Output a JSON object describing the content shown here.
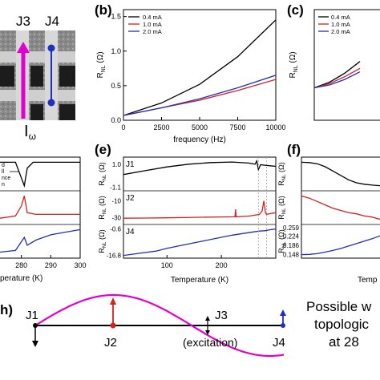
{
  "figure": {
    "panel_labels": {
      "b": "(b)",
      "c": "(c)",
      "e": "(e)",
      "f": "(f)",
      "h": "h)"
    },
    "device": {
      "j3": "J3",
      "j4": "J4",
      "i_omega": "I",
      "omega_sub": "ω"
    },
    "caption_lines": [
      "Possible w",
      "topologic",
      "at 28"
    ],
    "junctions": {
      "j1": "J1",
      "j2": "J2",
      "j3": "J3",
      "j4": "J4",
      "excitation": "(excitation)"
    },
    "freq_ylabel_main": "R",
    "freq_ylabel_sub": "NL",
    "freq_ylabel_unit": " (Ω)",
    "temp_ylabel_main": "R",
    "temp_ylabel_sub": "NL",
    "temp_ylabel_unit": " (Ω)",
    "partial_left_tlabel": "perature (K)",
    "partial_right_tlabel": "Temp",
    "partial_left_annotations": [
      "d",
      "ll",
      "nce",
      "n"
    ],
    "colors": {
      "black": "#000000",
      "red": "#d62020",
      "blue": "#1f2fbf",
      "magenta": "#e000d0"
    }
  },
  "chart_data": [
    {
      "id": "b",
      "type": "line",
      "xlabel": "frequency (Hz)",
      "ylabel": "R_NL (Ω)",
      "xlim": [
        0,
        10000
      ],
      "ylim": [
        0,
        1.6
      ],
      "xticks": [
        0,
        2500,
        5000,
        7500,
        10000
      ],
      "xtick_labels": [
        "0",
        "2500",
        "5000",
        "7500",
        "10000"
      ],
      "yticks": [
        0.0,
        0.5,
        1.0,
        1.5
      ],
      "ytick_labels": [
        "0.0",
        "0.5",
        "1.0",
        "1.5"
      ],
      "legend": "top-left",
      "series": [
        {
          "name": "0.4 mA",
          "color": "#000000",
          "x": [
            0,
            2500,
            5000,
            7500,
            10000
          ],
          "y": [
            0.07,
            0.25,
            0.52,
            0.92,
            1.45
          ]
        },
        {
          "name": "1.0 mA",
          "color": "#d62020",
          "x": [
            0,
            2500,
            5000,
            7500,
            10000
          ],
          "y": [
            0.07,
            0.18,
            0.29,
            0.43,
            0.59
          ]
        },
        {
          "name": "2.0 mA",
          "color": "#1f2fbf",
          "x": [
            0,
            2500,
            5000,
            7500,
            10000
          ],
          "y": [
            0.07,
            0.18,
            0.31,
            0.47,
            0.65
          ]
        }
      ]
    },
    {
      "id": "c",
      "type": "line",
      "partial": true,
      "ylabel": "R_NL (Ω)",
      "xlim": [
        0,
        10000
      ],
      "ylim": [
        0,
        1.6
      ],
      "legend": "top-left",
      "series": [
        {
          "name": "0.4 mA",
          "color": "#000000",
          "x": [
            0,
            1000,
            2000,
            3000
          ],
          "y": [
            0.47,
            0.55,
            0.68,
            0.85
          ]
        },
        {
          "name": "1.0 mA",
          "color": "#d62020",
          "x": [
            0,
            1000,
            2000,
            3000
          ],
          "y": [
            0.47,
            0.53,
            0.63,
            0.75
          ]
        },
        {
          "name": "2.0 mA",
          "color": "#1f2fbf",
          "x": [
            0,
            1000,
            2000,
            3000
          ],
          "y": [
            0.47,
            0.51,
            0.59,
            0.7
          ]
        }
      ]
    },
    {
      "id": "e",
      "type": "line",
      "xlabel": "Temperature (K)",
      "ylabel": "R_NL (Ω)",
      "xlim": [
        20,
        300
      ],
      "xticks": [
        100,
        200
      ],
      "xtick_labels": [
        "100",
        "200"
      ],
      "markers": [
        268,
        283
      ],
      "subplots": [
        {
          "label": "J1",
          "color": "#000000",
          "ylim": [
            -1.3,
            1.5
          ],
          "yticks": [
            1.0,
            -1.1
          ],
          "ytick_labels": [
            "1.0",
            "-1.1"
          ],
          "x": [
            20,
            60,
            100,
            140,
            180,
            220,
            250,
            262,
            265,
            268,
            272,
            280,
            290,
            300
          ],
          "y": [
            0.05,
            0.4,
            0.75,
            1.0,
            1.15,
            1.2,
            1.1,
            1.0,
            1.3,
            0.5,
            0.95,
            0.9,
            0.85,
            0.8
          ]
        },
        {
          "label": "J2",
          "color": "#d62020",
          "ylim": [
            -36,
            0
          ],
          "yticks": [
            -10,
            -30
          ],
          "ytick_labels": [
            "-10",
            "-30"
          ],
          "x": [
            20,
            60,
            100,
            150,
            200,
            225,
            226,
            227,
            250,
            270,
            275,
            278,
            281,
            283,
            290,
            300
          ],
          "y": [
            -30.5,
            -30.3,
            -30,
            -29.5,
            -29,
            -28.8,
            -20,
            -28.8,
            -28,
            -26,
            -22,
            -10,
            -24,
            -26,
            -25,
            -24
          ]
        },
        {
          "label": "J4",
          "color": "#1f2fbf",
          "ylim": [
            -17.5,
            1
          ],
          "yticks": [
            -0.6,
            -16.8
          ],
          "ytick_labels": [
            "-0.6",
            "-16.8"
          ],
          "x": [
            20,
            50,
            80,
            100,
            130,
            160,
            190,
            220,
            250,
            270,
            280,
            290,
            300
          ],
          "y": [
            -16.8,
            -15.5,
            -14.2,
            -12.5,
            -10.5,
            -8.5,
            -6.5,
            -4.5,
            -3,
            -2,
            -1.8,
            -1.2,
            -0.8
          ]
        }
      ]
    },
    {
      "id": "f",
      "type": "line",
      "partial": true,
      "xlabel": "Temp",
      "ylabel": "R_NL (Ω)",
      "subplots": [
        {
          "color": "#000000",
          "yticks": [],
          "ytick_labels": [],
          "x": [
            0,
            10,
            20,
            30,
            40,
            50,
            60,
            70,
            80,
            90,
            100
          ],
          "y": [
            1.25,
            1.24,
            1.2,
            1.1,
            0.95,
            0.8,
            0.65,
            0.55,
            0.5,
            0.47,
            0.45
          ]
        },
        {
          "color": "#d62020",
          "yticks": [],
          "ytick_labels": [],
          "x": [
            0,
            10,
            20,
            30,
            40,
            50,
            60,
            70,
            80,
            90,
            100
          ],
          "y": [
            3.1,
            2.9,
            2.6,
            2.3,
            2.0,
            1.8,
            1.6,
            1.5,
            1.3,
            1.2,
            1.0
          ]
        },
        {
          "color": "#1f2fbf",
          "ylim": [
            0.14,
            0.265
          ],
          "yticks": [
            0.259,
            0.224,
            0.186,
            0.148
          ],
          "ytick_labels": [
            "0.259",
            "0.224",
            "0.186",
            "0.148"
          ],
          "x": [
            0,
            10,
            20,
            30,
            40,
            50,
            60,
            70,
            80,
            90,
            100
          ],
          "y": [
            0.148,
            0.149,
            0.152,
            0.158,
            0.165,
            0.173,
            0.183,
            0.193,
            0.203,
            0.213,
            0.225
          ]
        }
      ]
    },
    {
      "id": "d_partial",
      "type": "line",
      "partial": true,
      "xlabel": "perature (K)",
      "xlim": [
        270,
        300
      ],
      "xticks": [
        280,
        290,
        300
      ],
      "xtick_labels": [
        "280",
        "290",
        "300"
      ],
      "subplots": [
        {
          "color": "#000000",
          "x": [
            270,
            278,
            281,
            282,
            284,
            290,
            300
          ],
          "y": [
            0.8,
            0.8,
            0.2,
            0.65,
            0.8,
            0.8,
            0.8
          ]
        },
        {
          "color": "#d62020",
          "x": [
            270,
            278,
            280,
            281,
            282,
            285,
            290,
            300
          ],
          "y": [
            0.15,
            0.25,
            0.55,
            0.85,
            0.35,
            0.3,
            0.3,
            0.3
          ]
        },
        {
          "color": "#1f2fbf",
          "x": [
            270,
            278,
            281,
            282,
            285,
            290,
            300
          ],
          "y": [
            0.3,
            0.35,
            0.6,
            0.45,
            0.55,
            0.65,
            0.75
          ]
        }
      ]
    }
  ]
}
